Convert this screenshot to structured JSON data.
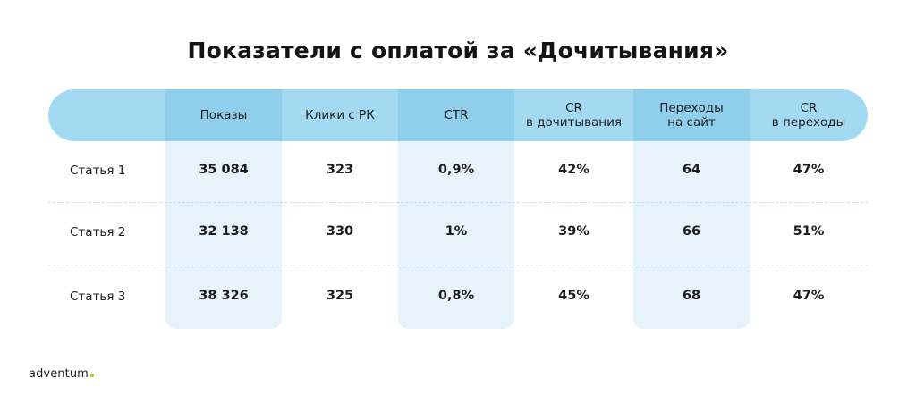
{
  "title": "Показатели с оплатой за «Дочитывания»",
  "columns": [
    "Показы",
    "Клики с РК",
    "CTR",
    "CR\nв дочитывания",
    "Переходы\nна сайт",
    "CR\nв переходы"
  ],
  "rows": [
    {
      "label": "Статья 1",
      "values": [
        "35 084",
        "323",
        "0,9%",
        "42%",
        "64",
        "47%"
      ]
    },
    {
      "label": "Статья 2",
      "values": [
        "32 138",
        "330",
        "1%",
        "39%",
        "66",
        "51%"
      ]
    },
    {
      "label": "Статья 3",
      "values": [
        "38 326",
        "325",
        "0,8%",
        "45%",
        "68",
        "47%"
      ]
    }
  ],
  "logo": "adventum",
  "colors": {
    "header_band": "#a3d9f1",
    "highlight_column": "#e6f3fb",
    "logo_dot": "#9ad01a"
  }
}
